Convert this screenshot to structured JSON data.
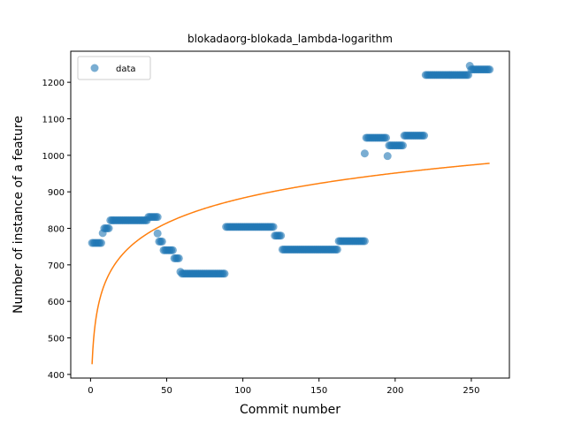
{
  "chart_data": {
    "type": "scatter",
    "title": "blokadaorg-blokada_lambda-logarithm",
    "xlabel": "Commit number",
    "ylabel": "Number of instance of a feature",
    "xlim": [
      -13,
      275
    ],
    "ylim": [
      390,
      1285
    ],
    "xticks": [
      0,
      50,
      100,
      150,
      200,
      250
    ],
    "yticks": [
      400,
      500,
      600,
      700,
      800,
      900,
      1000,
      1100,
      1200
    ],
    "grid": false,
    "legend": {
      "placement": "top-left",
      "entries": [
        "data"
      ]
    },
    "series": [
      {
        "name": "data",
        "kind": "scatter",
        "color": "#1f77b4",
        "segments": [
          {
            "x0": 1,
            "x1": 7,
            "y": 760
          },
          {
            "x": 8,
            "y": 787
          },
          {
            "x0": 9,
            "x1": 12,
            "y": 800
          },
          {
            "x0": 13,
            "x1": 37,
            "y": 822
          },
          {
            "x0": 38,
            "x1": 44,
            "y": 831
          },
          {
            "x": 44,
            "y": 786
          },
          {
            "x0": 45,
            "x1": 47,
            "y": 764
          },
          {
            "x0": 48,
            "x1": 54,
            "y": 740
          },
          {
            "x0": 55,
            "x1": 58,
            "y": 718
          },
          {
            "x": 59,
            "y": 681
          },
          {
            "x0": 60,
            "x1": 88,
            "y": 676
          },
          {
            "x0": 89,
            "x1": 120,
            "y": 804
          },
          {
            "x0": 121,
            "x1": 125,
            "y": 780
          },
          {
            "x0": 126,
            "x1": 162,
            "y": 742
          },
          {
            "x0": 163,
            "x1": 180,
            "y": 765
          },
          {
            "x": 180,
            "y": 1005
          },
          {
            "x0": 181,
            "x1": 194,
            "y": 1048
          },
          {
            "x": 195,
            "y": 998
          },
          {
            "x0": 196,
            "x1": 205,
            "y": 1027
          },
          {
            "x0": 206,
            "x1": 219,
            "y": 1054
          },
          {
            "x0": 220,
            "x1": 248,
            "y": 1220
          },
          {
            "x": 249,
            "y": 1245
          },
          {
            "x0": 250,
            "x1": 262,
            "y": 1235
          }
        ]
      },
      {
        "name": "",
        "kind": "line",
        "color": "#ff7f0e",
        "function": "y = 427.9 + 98.8 * ln(x)",
        "x_range": [
          1,
          262
        ]
      }
    ]
  }
}
